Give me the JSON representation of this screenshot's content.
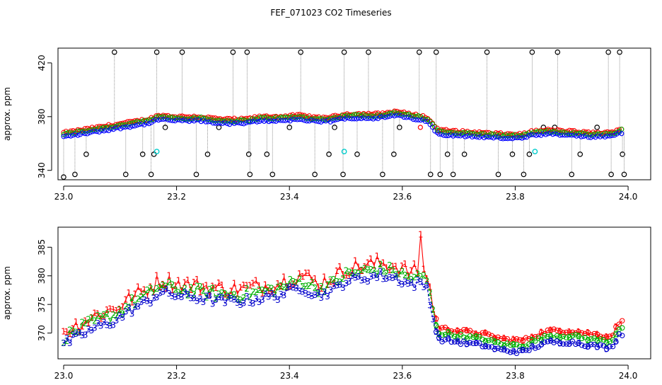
{
  "title": "FEF_071023  CO2 Timeseries",
  "chart_data": [
    {
      "type": "scatter",
      "ylabel": "approx. ppm",
      "xlim": [
        22.99,
        24.04
      ],
      "ylim": [
        333,
        431
      ],
      "xticks": [
        "23.0",
        "23.2",
        "23.4",
        "23.6",
        "23.8",
        "24.0"
      ],
      "xtick_values": [
        23.0,
        23.2,
        23.4,
        23.6,
        23.8,
        24.0
      ],
      "yticks": [
        "340",
        "380",
        "420"
      ],
      "ytick_values": [
        340,
        380,
        420
      ],
      "segments": [
        [
          23.0,
          23.33
        ],
        [
          23.33,
          23.665
        ],
        [
          23.665,
          23.99
        ]
      ],
      "baseline": [
        [
          23.0,
          366
        ],
        [
          23.03,
          368
        ],
        [
          23.06,
          370
        ],
        [
          23.09,
          372
        ],
        [
          23.12,
          374
        ],
        [
          23.15,
          376
        ],
        [
          23.17,
          379
        ],
        [
          23.2,
          378
        ],
        [
          23.24,
          378
        ],
        [
          23.28,
          376
        ],
        [
          23.32,
          376
        ],
        [
          23.35,
          378
        ],
        [
          23.38,
          378
        ],
        [
          23.42,
          379
        ],
        [
          23.45,
          377
        ],
        [
          23.48,
          378
        ],
        [
          23.5,
          380
        ],
        [
          23.53,
          380
        ],
        [
          23.56,
          380
        ],
        [
          23.59,
          382
        ],
        [
          23.61,
          380
        ],
        [
          23.63,
          379
        ],
        [
          23.645,
          377
        ],
        [
          23.655,
          372
        ],
        [
          23.665,
          368
        ],
        [
          23.7,
          367
        ],
        [
          23.74,
          366
        ],
        [
          23.78,
          365
        ],
        [
          23.815,
          365
        ],
        [
          23.83,
          367
        ],
        [
          23.86,
          368
        ],
        [
          23.9,
          367
        ],
        [
          23.93,
          366
        ],
        [
          23.97,
          366
        ],
        [
          23.985,
          369
        ]
      ],
      "offsets": {
        "red": 2,
        "green": 1,
        "blue": -1
      },
      "series": [
        {
          "name": "red",
          "color": "#ff0000"
        },
        {
          "name": "green",
          "color": "#00b000"
        },
        {
          "name": "blue",
          "color": "#0000ff"
        }
      ],
      "black_points": [
        [
          23.0,
          335
        ],
        [
          23.02,
          337
        ],
        [
          23.04,
          352
        ],
        [
          23.07,
          372
        ],
        [
          23.09,
          428
        ],
        [
          23.11,
          337
        ],
        [
          23.14,
          352
        ],
        [
          23.155,
          337
        ],
        [
          23.16,
          352
        ],
        [
          23.165,
          428
        ],
        [
          23.18,
          372
        ],
        [
          23.21,
          428
        ],
        [
          23.235,
          337
        ],
        [
          23.255,
          352
        ],
        [
          23.275,
          372
        ],
        [
          23.3,
          428
        ],
        [
          23.325,
          428
        ],
        [
          23.328,
          352
        ],
        [
          23.33,
          337
        ],
        [
          23.36,
          352
        ],
        [
          23.37,
          337
        ],
        [
          23.4,
          372
        ],
        [
          23.42,
          428
        ],
        [
          23.445,
          337
        ],
        [
          23.47,
          352
        ],
        [
          23.48,
          372
        ],
        [
          23.495,
          337
        ],
        [
          23.497,
          428
        ],
        [
          23.52,
          352
        ],
        [
          23.54,
          428
        ],
        [
          23.565,
          337
        ],
        [
          23.585,
          352
        ],
        [
          23.595,
          372
        ],
        [
          23.63,
          428
        ],
        [
          23.65,
          337
        ],
        [
          23.66,
          428
        ],
        [
          23.667,
          337
        ],
        [
          23.68,
          352
        ],
        [
          23.69,
          337
        ],
        [
          23.71,
          352
        ],
        [
          23.75,
          428
        ],
        [
          23.77,
          337
        ],
        [
          23.795,
          352
        ],
        [
          23.815,
          337
        ],
        [
          23.825,
          352
        ],
        [
          23.83,
          428
        ],
        [
          23.85,
          372
        ],
        [
          23.87,
          372
        ],
        [
          23.875,
          428
        ],
        [
          23.9,
          337
        ],
        [
          23.915,
          352
        ],
        [
          23.945,
          372
        ],
        [
          23.965,
          428
        ],
        [
          23.97,
          337
        ],
        [
          23.985,
          428
        ],
        [
          23.99,
          352
        ],
        [
          23.993,
          337
        ]
      ],
      "cyan_points": [
        [
          23.165,
          354
        ],
        [
          23.497,
          354
        ],
        [
          23.835,
          354
        ]
      ],
      "red_outlier": [
        23.632,
        372
      ]
    },
    {
      "type": "line",
      "ylabel": "approx. ppm",
      "xlim": [
        22.99,
        24.04
      ],
      "ylim": [
        365.5,
        388.5
      ],
      "xticks": [
        "23.0",
        "23.2",
        "23.4",
        "23.6",
        "23.8",
        "24.0"
      ],
      "xtick_values": [
        23.0,
        23.2,
        23.4,
        23.6,
        23.8,
        24.0
      ],
      "yticks": [
        "370",
        "375",
        "380",
        "385"
      ],
      "ytick_values": [
        370,
        375,
        380,
        385
      ],
      "segments": [
        [
          23.0,
          23.33
        ],
        [
          23.33,
          23.665
        ],
        [
          23.665,
          23.99
        ]
      ],
      "baseline": [
        [
          23.0,
          368
        ],
        [
          23.03,
          369.5
        ],
        [
          23.06,
          371
        ],
        [
          23.09,
          372
        ],
        [
          23.12,
          374
        ],
        [
          23.15,
          375.5
        ],
        [
          23.17,
          377
        ],
        [
          23.2,
          376.5
        ],
        [
          23.24,
          376
        ],
        [
          23.28,
          375.5
        ],
        [
          23.32,
          375.5
        ],
        [
          23.35,
          376
        ],
        [
          23.38,
          376.5
        ],
        [
          23.42,
          378
        ],
        [
          23.45,
          376.5
        ],
        [
          23.48,
          377.5
        ],
        [
          23.5,
          379
        ],
        [
          23.53,
          379.5
        ],
        [
          23.56,
          380
        ],
        [
          23.59,
          379.5
        ],
        [
          23.61,
          378.5
        ],
        [
          23.63,
          378.5
        ],
        [
          23.645,
          378
        ],
        [
          23.655,
          372
        ],
        [
          23.665,
          369
        ],
        [
          23.7,
          368.5
        ],
        [
          23.74,
          368
        ],
        [
          23.78,
          367
        ],
        [
          23.815,
          366.8
        ],
        [
          23.83,
          367.5
        ],
        [
          23.86,
          368.5
        ],
        [
          23.9,
          368.5
        ],
        [
          23.93,
          368
        ],
        [
          23.97,
          367.5
        ],
        [
          23.985,
          370
        ]
      ],
      "offsets": {
        "red": 1.8,
        "green": 0.9,
        "blue": -0.2
      },
      "series": [
        {
          "name": "1",
          "color": "#ff0000"
        },
        {
          "name": "2",
          "color": "#00b000"
        },
        {
          "name": "3",
          "color": "#0000cc"
        }
      ],
      "red_spike": [
        23.632,
        387.2
      ]
    }
  ]
}
